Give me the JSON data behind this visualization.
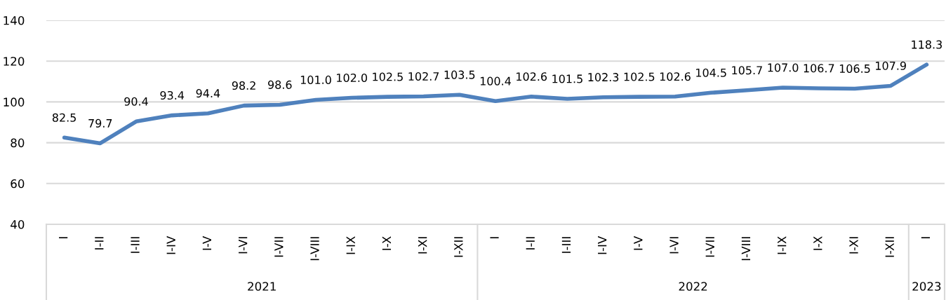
{
  "chart_data": {
    "type": "line",
    "categories": [
      "I",
      "I-II",
      "I-III",
      "I-IV",
      "I-V",
      "I-VI",
      "I-VII",
      "I-VIII",
      "I-IX",
      "I-X",
      "I-XI",
      "I-XII",
      "I",
      "I-II",
      "I-III",
      "I-IV",
      "I-V",
      "I-VI",
      "I-VII",
      "I-VIII",
      "I-IX",
      "I-X",
      "I-XI",
      "I-XII",
      "I"
    ],
    "series": [
      {
        "color": "#4f81bd",
        "values": [
          82.5,
          79.7,
          90.4,
          93.4,
          94.4,
          98.2,
          98.6,
          101,
          102,
          102.5,
          102.7,
          103.5,
          100.4,
          102.6,
          101.5,
          102.3,
          102.5,
          102.6,
          104.5,
          105.7,
          107,
          106.7,
          106.5,
          107.9,
          118.3
        ],
        "value_labels": [
          "82.5",
          "79.7",
          "90.4",
          "93.4",
          "94.4",
          "98.2",
          "98.6",
          "101.0",
          "102.0",
          "102.5",
          "102.7",
          "103.5",
          "100.4",
          "102.6",
          "101.5",
          "102.3",
          "102.5",
          "102.6",
          "104.5",
          "105.7",
          "107.0",
          "106.7",
          "106.5",
          "107.9",
          "118.3"
        ]
      }
    ],
    "ylim": [
      40,
      140
    ],
    "yticks": [
      40,
      60,
      80,
      100,
      120,
      140
    ],
    "grid": "y",
    "marker": "none",
    "line_style": "solid",
    "legend": false,
    "annotations": [
      "2021",
      "2022",
      "2023"
    ]
  }
}
